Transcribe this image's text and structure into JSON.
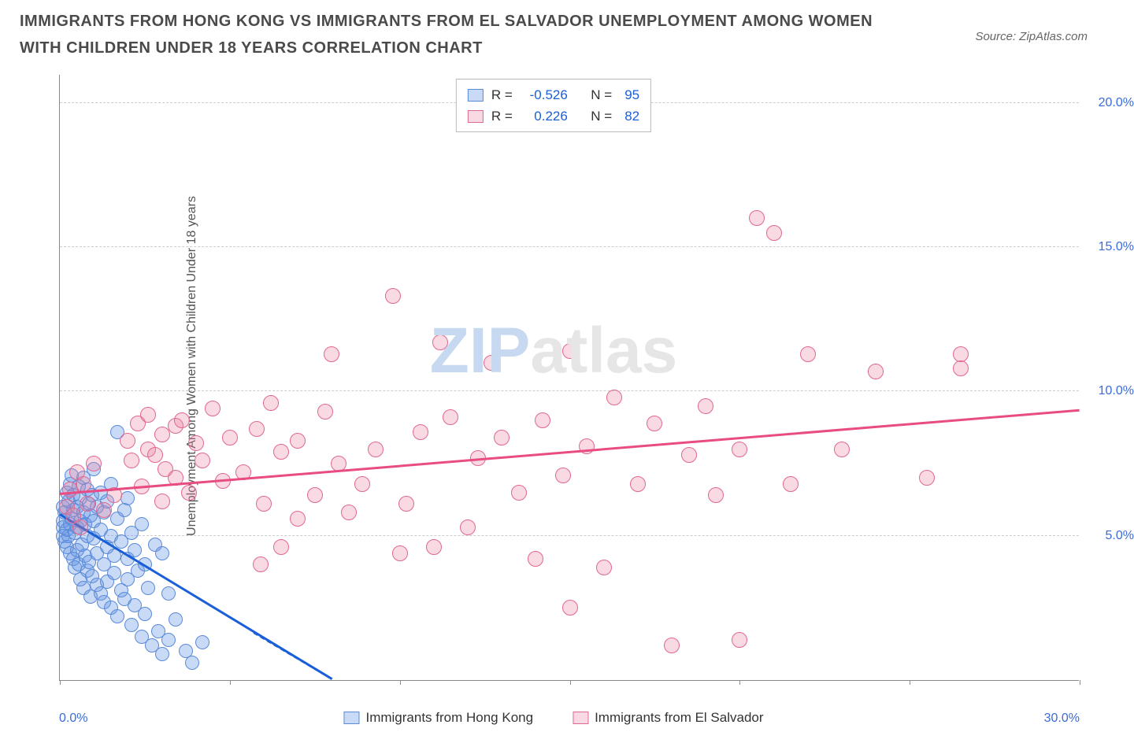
{
  "title": "IMMIGRANTS FROM HONG KONG VS IMMIGRANTS FROM EL SALVADOR UNEMPLOYMENT AMONG WOMEN WITH CHILDREN UNDER 18 YEARS CORRELATION CHART",
  "source": "Source: ZipAtlas.com",
  "y_axis_title": "Unemployment Among Women with Children Under 18 years",
  "watermark": {
    "part1": "ZIP",
    "part2": "atlas"
  },
  "chart": {
    "type": "scatter",
    "xlim": [
      0,
      30
    ],
    "ylim": [
      0,
      21
    ],
    "x_ticks": [
      0,
      5,
      10,
      15,
      20,
      25,
      30
    ],
    "x_min_label": "0.0%",
    "x_max_label": "30.0%",
    "y_ticks": [
      {
        "v": 5,
        "label": "5.0%"
      },
      {
        "v": 10,
        "label": "10.0%"
      },
      {
        "v": 15,
        "label": "15.0%"
      },
      {
        "v": 20,
        "label": "20.0%"
      }
    ],
    "grid_color": "#cccccc",
    "background_color": "#ffffff",
    "series": [
      {
        "name": "Immigrants from Hong Kong",
        "dot_fill": "rgba(100,150,230,0.35)",
        "dot_stroke": "#5a8ad8",
        "line_color": "#1a5fd8",
        "dot_radius": 9,
        "r_label": "R =",
        "r_value": "-0.526",
        "n_label": "N =",
        "n_value": "95",
        "trend": {
          "x1": 0,
          "y1": 5.7,
          "x2": 8,
          "y2": 0
        },
        "trend_dashed_ext": {
          "x1": 5.7,
          "y1": 1.6,
          "x2": 8,
          "y2": 0
        },
        "points": [
          [
            0.1,
            5.5
          ],
          [
            0.1,
            5.3
          ],
          [
            0.1,
            5.0
          ],
          [
            0.1,
            6.0
          ],
          [
            0.15,
            4.8
          ],
          [
            0.15,
            5.8
          ],
          [
            0.2,
            6.5
          ],
          [
            0.2,
            5.2
          ],
          [
            0.2,
            4.6
          ],
          [
            0.25,
            6.2
          ],
          [
            0.25,
            5.0
          ],
          [
            0.3,
            6.8
          ],
          [
            0.3,
            5.4
          ],
          [
            0.3,
            4.4
          ],
          [
            0.35,
            7.1
          ],
          [
            0.35,
            5.6
          ],
          [
            0.4,
            4.2
          ],
          [
            0.4,
            5.9
          ],
          [
            0.4,
            6.4
          ],
          [
            0.45,
            5.1
          ],
          [
            0.45,
            3.9
          ],
          [
            0.5,
            6.0
          ],
          [
            0.5,
            4.5
          ],
          [
            0.5,
            5.3
          ],
          [
            0.55,
            6.7
          ],
          [
            0.55,
            4.0
          ],
          [
            0.6,
            5.5
          ],
          [
            0.6,
            3.5
          ],
          [
            0.6,
            6.3
          ],
          [
            0.65,
            4.7
          ],
          [
            0.7,
            5.8
          ],
          [
            0.7,
            3.2
          ],
          [
            0.7,
            7.0
          ],
          [
            0.75,
            4.3
          ],
          [
            0.75,
            5.4
          ],
          [
            0.8,
            6.6
          ],
          [
            0.8,
            3.8
          ],
          [
            0.8,
            5.0
          ],
          [
            0.85,
            6.1
          ],
          [
            0.85,
            4.1
          ],
          [
            0.9,
            5.7
          ],
          [
            0.9,
            2.9
          ],
          [
            0.95,
            6.4
          ],
          [
            0.95,
            3.6
          ],
          [
            1.0,
            4.9
          ],
          [
            1.0,
            5.5
          ],
          [
            1.0,
            7.3
          ],
          [
            1.1,
            3.3
          ],
          [
            1.1,
            6.0
          ],
          [
            1.1,
            4.4
          ],
          [
            1.2,
            5.2
          ],
          [
            1.2,
            3.0
          ],
          [
            1.2,
            6.5
          ],
          [
            1.3,
            2.7
          ],
          [
            1.3,
            4.0
          ],
          [
            1.3,
            5.8
          ],
          [
            1.4,
            3.4
          ],
          [
            1.4,
            6.2
          ],
          [
            1.4,
            4.6
          ],
          [
            1.5,
            5.0
          ],
          [
            1.5,
            2.5
          ],
          [
            1.5,
            6.8
          ],
          [
            1.6,
            3.7
          ],
          [
            1.6,
            4.3
          ],
          [
            1.7,
            2.2
          ],
          [
            1.7,
            5.6
          ],
          [
            1.7,
            8.6
          ],
          [
            1.8,
            3.1
          ],
          [
            1.8,
            4.8
          ],
          [
            1.9,
            2.8
          ],
          [
            1.9,
            5.9
          ],
          [
            2.0,
            3.5
          ],
          [
            2.0,
            6.3
          ],
          [
            2.0,
            4.2
          ],
          [
            2.1,
            1.9
          ],
          [
            2.1,
            5.1
          ],
          [
            2.2,
            2.6
          ],
          [
            2.2,
            4.5
          ],
          [
            2.3,
            3.8
          ],
          [
            2.4,
            1.5
          ],
          [
            2.4,
            5.4
          ],
          [
            2.5,
            2.3
          ],
          [
            2.5,
            4.0
          ],
          [
            2.6,
            3.2
          ],
          [
            2.7,
            1.2
          ],
          [
            2.8,
            4.7
          ],
          [
            2.9,
            1.7
          ],
          [
            3.0,
            0.9
          ],
          [
            3.0,
            4.4
          ],
          [
            3.2,
            3.0
          ],
          [
            3.2,
            1.4
          ],
          [
            3.4,
            2.1
          ],
          [
            3.7,
            1.0
          ],
          [
            3.9,
            0.6
          ],
          [
            4.2,
            1.3
          ]
        ]
      },
      {
        "name": "Immigrants from El Salvador",
        "dot_fill": "rgba(235,130,160,0.3)",
        "dot_stroke": "#e06892",
        "line_color": "#e84c82",
        "dot_radius": 10,
        "r_label": "R =",
        "r_value": "0.226",
        "n_label": "N =",
        "n_value": "82",
        "trend": {
          "x1": 0,
          "y1": 6.4,
          "x2": 30,
          "y2": 9.3
        },
        "points": [
          [
            0.2,
            6.0
          ],
          [
            0.3,
            6.6
          ],
          [
            0.4,
            5.7
          ],
          [
            0.5,
            7.2
          ],
          [
            0.6,
            5.3
          ],
          [
            0.7,
            6.8
          ],
          [
            0.8,
            6.1
          ],
          [
            1.0,
            7.5
          ],
          [
            1.3,
            5.9
          ],
          [
            1.6,
            6.4
          ],
          [
            2.0,
            8.3
          ],
          [
            2.1,
            7.6
          ],
          [
            2.3,
            8.9
          ],
          [
            2.4,
            6.7
          ],
          [
            2.6,
            8.0
          ],
          [
            2.6,
            9.2
          ],
          [
            2.8,
            7.8
          ],
          [
            3.0,
            6.2
          ],
          [
            3.0,
            8.5
          ],
          [
            3.1,
            7.3
          ],
          [
            3.4,
            8.8
          ],
          [
            3.4,
            7.0
          ],
          [
            3.6,
            9.0
          ],
          [
            3.8,
            6.5
          ],
          [
            4.0,
            8.2
          ],
          [
            4.2,
            7.6
          ],
          [
            4.5,
            9.4
          ],
          [
            4.8,
            6.9
          ],
          [
            5.0,
            8.4
          ],
          [
            5.4,
            7.2
          ],
          [
            5.8,
            8.7
          ],
          [
            5.9,
            4.0
          ],
          [
            6.0,
            6.1
          ],
          [
            6.2,
            9.6
          ],
          [
            6.5,
            7.9
          ],
          [
            6.5,
            4.6
          ],
          [
            7.0,
            8.3
          ],
          [
            7.0,
            5.6
          ],
          [
            7.5,
            6.4
          ],
          [
            7.8,
            9.3
          ],
          [
            8.0,
            11.3
          ],
          [
            8.2,
            7.5
          ],
          [
            8.5,
            5.8
          ],
          [
            8.9,
            6.8
          ],
          [
            9.3,
            8.0
          ],
          [
            9.8,
            13.3
          ],
          [
            10.0,
            4.4
          ],
          [
            10.2,
            6.1
          ],
          [
            10.6,
            8.6
          ],
          [
            11.0,
            4.6
          ],
          [
            11.2,
            11.7
          ],
          [
            11.5,
            9.1
          ],
          [
            12.0,
            5.3
          ],
          [
            12.3,
            7.7
          ],
          [
            12.7,
            11.0
          ],
          [
            13.0,
            8.4
          ],
          [
            13.5,
            6.5
          ],
          [
            14.0,
            4.2
          ],
          [
            14.2,
            9.0
          ],
          [
            14.8,
            7.1
          ],
          [
            15.0,
            2.5
          ],
          [
            15.0,
            11.4
          ],
          [
            15.5,
            8.1
          ],
          [
            16.0,
            3.9
          ],
          [
            16.3,
            9.8
          ],
          [
            17.0,
            6.8
          ],
          [
            17.5,
            8.9
          ],
          [
            18.0,
            1.2
          ],
          [
            18.5,
            7.8
          ],
          [
            19.0,
            9.5
          ],
          [
            19.3,
            6.4
          ],
          [
            20.0,
            8.0
          ],
          [
            20.0,
            1.4
          ],
          [
            20.5,
            16.0
          ],
          [
            21.0,
            15.5
          ],
          [
            21.5,
            6.8
          ],
          [
            22.0,
            11.3
          ],
          [
            23.0,
            8.0
          ],
          [
            24.0,
            10.7
          ],
          [
            25.5,
            7.0
          ],
          [
            26.5,
            10.8
          ],
          [
            26.5,
            11.3
          ]
        ]
      }
    ]
  },
  "legend_bottom": [
    "Immigrants from Hong Kong",
    "Immigrants from El Salvador"
  ]
}
